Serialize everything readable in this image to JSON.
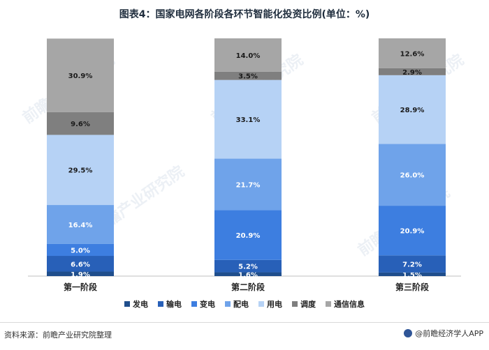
{
  "title": "图表4：国家电网各阶段各环节智能化投资比例(单位：%)",
  "source_label": "资料来源：前瞻产业研究院整理",
  "brand_label": "@前瞻经济学人APP",
  "watermark_text": "前瞻产业研究院",
  "chart_data": {
    "type": "bar",
    "stacked": true,
    "categories": [
      "第一阶段",
      "第二阶段",
      "第三阶段"
    ],
    "ylim": [
      0,
      100
    ],
    "grid": false,
    "legend_position": "bottom",
    "series": [
      {
        "name": "发电",
        "color": "#1f4e8c",
        "values": [
          1.9,
          1.6,
          1.5
        ]
      },
      {
        "name": "输电",
        "color": "#2860b8",
        "values": [
          6.6,
          5.2,
          7.2
        ]
      },
      {
        "name": "变电",
        "color": "#3d7ee0",
        "values": [
          5.0,
          20.9,
          20.9
        ]
      },
      {
        "name": "配电",
        "color": "#6fa3ea",
        "values": [
          16.4,
          21.7,
          26.0
        ]
      },
      {
        "name": "用电",
        "color": "#b6d2f5",
        "values": [
          29.5,
          33.1,
          28.9
        ]
      },
      {
        "name": "调度",
        "color": "#7f7f7f",
        "values": [
          9.6,
          3.5,
          2.9
        ]
      },
      {
        "name": "通信信息",
        "color": "#a6a6a6",
        "values": [
          30.9,
          14.0,
          12.6
        ]
      }
    ],
    "data_labels": [
      [
        "1.9%",
        "1.6%",
        "1.5%"
      ],
      [
        "6.6%",
        "5.2%",
        "7.2%"
      ],
      [
        "5.0%",
        "20.9%",
        "20.9%"
      ],
      [
        "16.4%",
        "21.7%",
        "26.0%"
      ],
      [
        "29.5%",
        "33.1%",
        "28.9%"
      ],
      [
        "9.6%",
        "3.5%",
        "2.9%"
      ],
      [
        "30.9%",
        "14.0%",
        "12.6%"
      ]
    ]
  }
}
